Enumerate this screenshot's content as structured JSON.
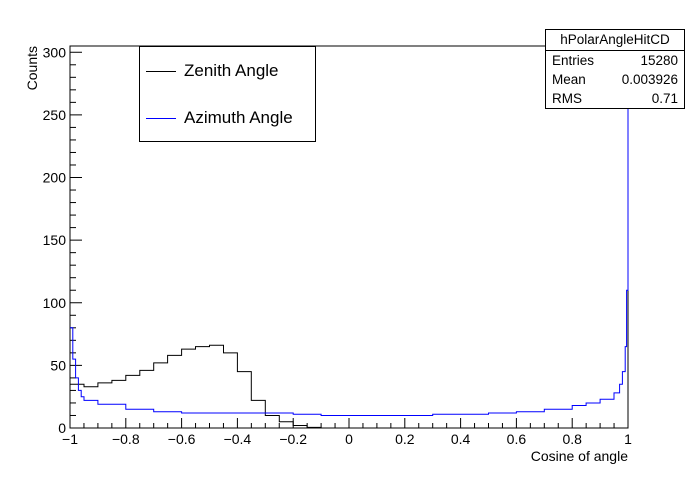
{
  "chart_data": {
    "type": "line",
    "title": "",
    "xlabel": "Cosine of angle",
    "ylabel": "Counts",
    "xlim": [
      -1,
      1
    ],
    "ylim": [
      0,
      305
    ],
    "x_ticks": [
      -1,
      -0.8,
      -0.6,
      -0.4,
      -0.2,
      0,
      0.2,
      0.4,
      0.6,
      0.8,
      1
    ],
    "x_tick_labels": [
      "−1",
      "−0.8",
      "−0.6",
      "−0.4",
      "−0.2",
      "0",
      "0.2",
      "0.4",
      "0.6",
      "0.8",
      "1"
    ],
    "y_ticks": [
      0,
      50,
      100,
      150,
      200,
      250,
      300
    ],
    "y_tick_labels": [
      "0",
      "50",
      "100",
      "150",
      "200",
      "250",
      "300"
    ],
    "grid": false,
    "legend_position": "top-left",
    "series": [
      {
        "name": "Zenith Angle",
        "color": "#000000",
        "x": [
          -1,
          -0.95,
          -0.9,
          -0.85,
          -0.8,
          -0.75,
          -0.7,
          -0.65,
          -0.6,
          -0.55,
          -0.5,
          -0.45,
          -0.4,
          -0.35,
          -0.3,
          -0.25,
          -0.2,
          -0.15,
          -0.1
        ],
        "y": [
          35,
          33,
          36,
          38,
          42,
          46,
          52,
          58,
          63,
          65,
          66,
          60,
          45,
          22,
          10,
          5,
          2,
          0.5,
          0
        ]
      },
      {
        "name": "Azimuth Angle",
        "color": "#0000ff",
        "x": [
          -1,
          -0.99,
          -0.98,
          -0.97,
          -0.96,
          -0.95,
          -0.9,
          -0.8,
          -0.7,
          -0.6,
          -0.5,
          -0.4,
          -0.3,
          -0.2,
          -0.1,
          0,
          0.1,
          0.2,
          0.3,
          0.4,
          0.5,
          0.6,
          0.7,
          0.8,
          0.85,
          0.9,
          0.95,
          0.97,
          0.98,
          0.99,
          0.995,
          1
        ],
        "y": [
          80,
          55,
          40,
          30,
          25,
          22,
          19,
          15,
          13,
          12,
          12,
          12,
          12,
          11,
          10,
          10,
          10,
          10,
          11,
          11,
          12,
          13,
          15,
          18,
          20,
          23,
          28,
          35,
          45,
          65,
          110,
          260
        ]
      }
    ]
  },
  "legend": {
    "entries": [
      {
        "label": "Zenith Angle",
        "color": "#000000"
      },
      {
        "label": "Azimuth Angle",
        "color": "#0000ff"
      }
    ]
  },
  "stats": {
    "name": "hPolarAngleHitCD",
    "rows": [
      {
        "label": "Entries",
        "value": "15280"
      },
      {
        "label": "Mean",
        "value": "0.003926"
      },
      {
        "label": "RMS",
        "value": "0.71"
      }
    ]
  }
}
